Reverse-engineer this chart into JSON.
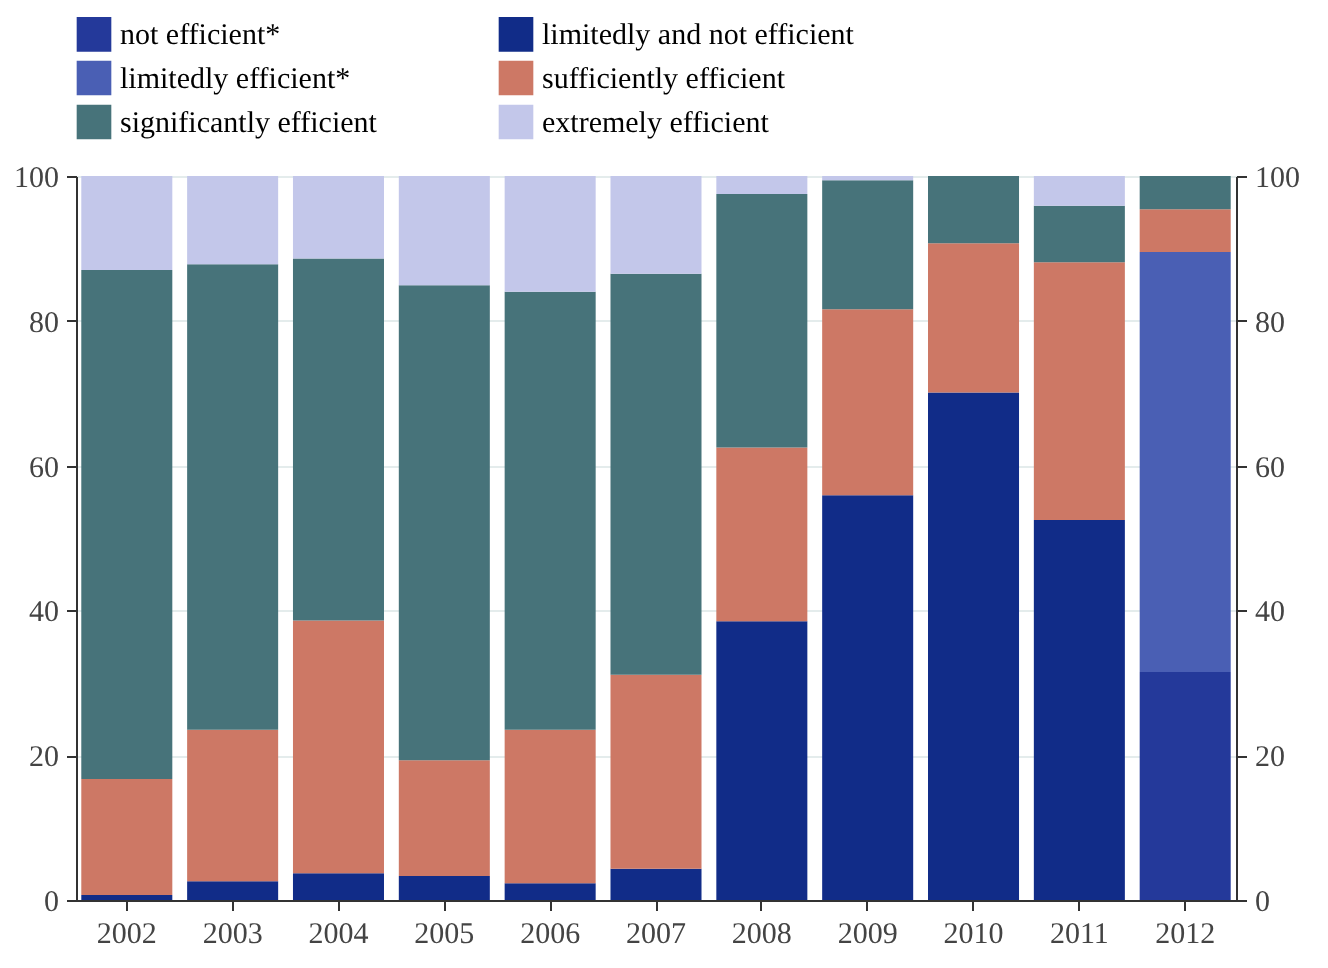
{
  "chart_data": {
    "type": "bar",
    "stacked": true,
    "categories": [
      "2002",
      "2003",
      "2004",
      "2005",
      "2006",
      "2007",
      "2008",
      "2009",
      "2010",
      "2011",
      "2012"
    ],
    "series": [
      {
        "name": "not efficient*",
        "color": "#24399a",
        "values": [
          null,
          null,
          null,
          null,
          null,
          null,
          null,
          null,
          null,
          null,
          31.5
        ]
      },
      {
        "name": "limitedly and not efficient",
        "color": "#112c88",
        "values": [
          0.7,
          2.6,
          3.7,
          3.3,
          2.3,
          4.3,
          38.5,
          55.9,
          70.1,
          52.5,
          null
        ]
      },
      {
        "name": "limitedly efficient*",
        "color": "#4a5fb4",
        "values": [
          null,
          null,
          null,
          null,
          null,
          null,
          null,
          null,
          null,
          null,
          58.0
        ]
      },
      {
        "name": "sufficiently efficient",
        "color": "#cd7865",
        "values": [
          16.0,
          20.9,
          34.9,
          16.0,
          21.2,
          26.8,
          24.0,
          25.7,
          20.6,
          35.6,
          5.9
        ]
      },
      {
        "name": "significantly efficient",
        "color": "#47737a",
        "values": [
          70.3,
          64.3,
          50.0,
          65.6,
          60.5,
          55.4,
          35.0,
          17.8,
          9.3,
          7.8,
          4.6
        ]
      },
      {
        "name": "extremely efficient",
        "color": "#c3c7ea",
        "values": [
          13.0,
          12.2,
          11.4,
          15.1,
          16.0,
          13.5,
          2.5,
          0.6,
          null,
          4.1,
          null
        ]
      }
    ],
    "ylim": [
      0,
      100
    ],
    "yticks": [
      0,
      20,
      40,
      60,
      80,
      100
    ],
    "y2lim": [
      0,
      100
    ],
    "y2ticks": [
      0,
      20,
      40,
      60,
      80,
      100
    ],
    "grid": "y",
    "legend": "top"
  }
}
